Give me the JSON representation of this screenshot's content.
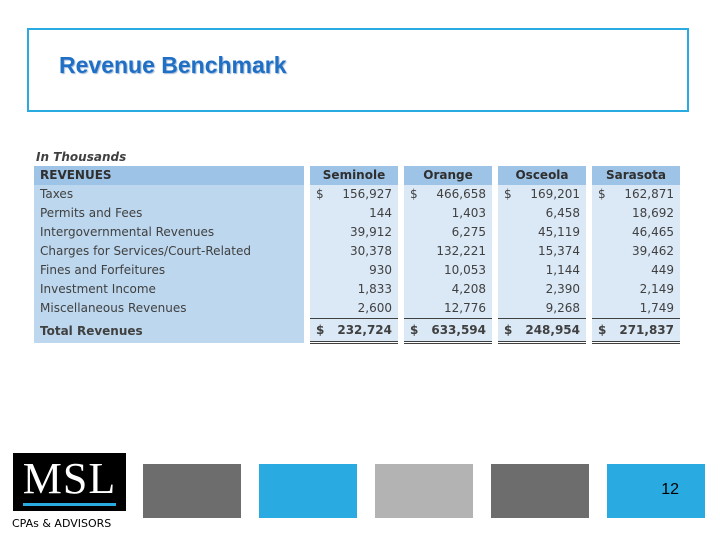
{
  "title": "Revenue Benchmark",
  "table": {
    "caption": "In Thousands",
    "header": {
      "label": "REVENUES",
      "columns": [
        "Seminole",
        "Orange",
        "Osceola",
        "Sarasota"
      ]
    },
    "rows": [
      {
        "label": "Taxes",
        "currency": "$",
        "values": [
          "156,927",
          "466,658",
          "169,201",
          "162,871"
        ]
      },
      {
        "label": "Permits and Fees",
        "currency": "",
        "values": [
          "144",
          "1,403",
          "6,458",
          "18,692"
        ]
      },
      {
        "label": "Intergovernmental Revenues",
        "currency": "",
        "values": [
          "39,912",
          "6,275",
          "45,119",
          "46,465"
        ]
      },
      {
        "label": "Charges for Services/Court-Related",
        "currency": "",
        "values": [
          "30,378",
          "132,221",
          "15,374",
          "39,462"
        ]
      },
      {
        "label": "Fines and Forfeitures",
        "currency": "",
        "values": [
          "930",
          "10,053",
          "1,144",
          "449"
        ]
      },
      {
        "label": "Investment Income",
        "currency": "",
        "values": [
          "1,833",
          "4,208",
          "2,390",
          "2,149"
        ]
      },
      {
        "label": "Miscellaneous Revenues",
        "currency": "",
        "values": [
          "2,600",
          "12,776",
          "9,268",
          "1,749"
        ]
      }
    ],
    "total": {
      "label": "Total Revenues",
      "currency": "$",
      "values": [
        "232,724",
        "633,594",
        "248,954",
        "271,837"
      ]
    }
  },
  "logo": {
    "text": "MSL",
    "tagline": "CPAs & ADVISORS"
  },
  "footer_blocks": [
    "#6d6d6d",
    "#29abe2",
    "#b3b3b3",
    "#6d6d6d",
    "#29abe2"
  ],
  "page_number": "12"
}
